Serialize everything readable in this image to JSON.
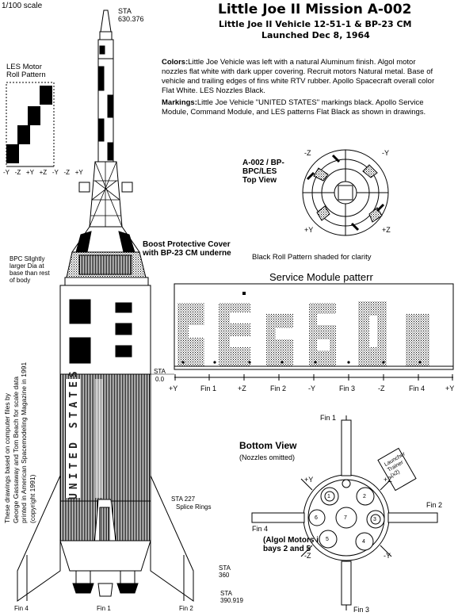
{
  "scale": "1/100 scale",
  "title": "Little Joe II  Mission A-002",
  "subtitle1": "Little Joe II Vehicle 12-51-1 & BP-23 CM",
  "subtitle2": "Launched Dec 8, 1964",
  "colors_label": "Colors:",
  "colors_text": "Little Joe  Vehicle was left with a natural Aluminum finish.  Algol motor nozzles flat white with dark upper covering. Recruit motors Natural metal. Base of vehicle and trailing edges of fins white RTV rubber. Apollo Spacecraft overall color Flat White. LES Nozzles Black.",
  "markings_label": "Markings:",
  "markings_text": "Little Joe Vehicle \"UNITED STATES\" markings black. Apollo Service Module, Command Module, and LES patterns Flat Black as shown in drawings.",
  "les_motor": "LES Motor\nRoll Pattern",
  "les_axis": [
    "-Y",
    "-Z",
    "+Y",
    "+Z",
    "-Y",
    "-Z",
    "+Y"
  ],
  "sta_top": "STA",
  "sta_top_val": "630.376",
  "top_view_title": "A-002 / BP-\nBPC/LES\nTop View",
  "top_view_labels": [
    "-Z",
    "-Y",
    "+Y",
    "+Z"
  ],
  "boost_cover": "Boost Protective Cover\nwith BP-23 CM underne",
  "bpc_note": "BPC Sllghtly\nlarger Dia at\nbase than rest\nof body",
  "roll_note": "Black Roll Pattern shaded for clarity",
  "sm_title": "Service Module patterr",
  "sm_axis": [
    "+Y",
    "Fin 1",
    "+Z",
    "Fin 2",
    "-Y",
    "Fin 3",
    "-Z",
    "Fin 4",
    "+Y"
  ],
  "sta0": "STA",
  "sta0_val": "0.0",
  "credit": "These drawings based on computer files by\nGeorge Gassaway and Tom Beach for scale data\nprinted in American Spacemodeling Magazine in 1991\n(copyright 1991)",
  "splice_sta": "STA  227",
  "splice_label": "Splice Rings",
  "sta360": "STA\n360",
  "sta390": "STA\n390.919",
  "fin_bottom": [
    "Fin 4",
    "Fin 1",
    "Fin 2"
  ],
  "bottom_view_title": "Bottom View",
  "bottom_view_sub": "(Nozzles omitted)",
  "bottom_fins": [
    "Fin 1",
    "Fin 2",
    "Fin 3",
    "Fin 4"
  ],
  "bottom_axis": [
    "+Y",
    "+Z",
    "-Z",
    "-Y"
  ],
  "launcher_tab": "Launcher\nTrainer\n(x2)",
  "algol_note": "(Algol Motors i\nbays 2 and 5",
  "bay_numbers": [
    "1",
    "2",
    "3",
    "4",
    "5",
    "6",
    "7"
  ],
  "vehicle_text": "UNITED STATES"
}
